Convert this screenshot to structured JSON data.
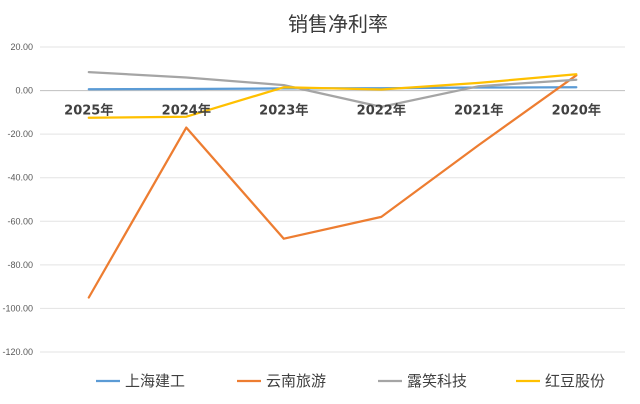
{
  "chart_data": {
    "type": "line",
    "title": "销售净利率",
    "categories": [
      "2025年",
      "2024年",
      "2023年",
      "2022年",
      "2021年",
      "2020年"
    ],
    "ylim": [
      -120,
      20
    ],
    "yticks": [
      "20.00",
      "0.00",
      "-20.00",
      "-40.00",
      "-60.00",
      "-80.00",
      "-100.00",
      "-120.00"
    ],
    "grid": "horizontal",
    "legend_position": "bottom",
    "series": [
      {
        "name": "上海建工",
        "color": "#5b9bd5",
        "values": [
          0.6,
          0.7,
          1.0,
          1.1,
          1.4,
          1.5
        ]
      },
      {
        "name": "云南旅游",
        "color": "#ed7d31",
        "values": [
          -95,
          -17,
          -68,
          -58,
          -25,
          7
        ]
      },
      {
        "name": "露笑科技",
        "color": "#a5a5a5",
        "values": [
          8.5,
          6.0,
          2.5,
          -7.5,
          2.0,
          5.0
        ]
      },
      {
        "name": "红豆股份",
        "color": "#ffc000",
        "values": [
          -12.5,
          -12,
          1.5,
          0.5,
          3.5,
          7.5
        ]
      }
    ]
  }
}
